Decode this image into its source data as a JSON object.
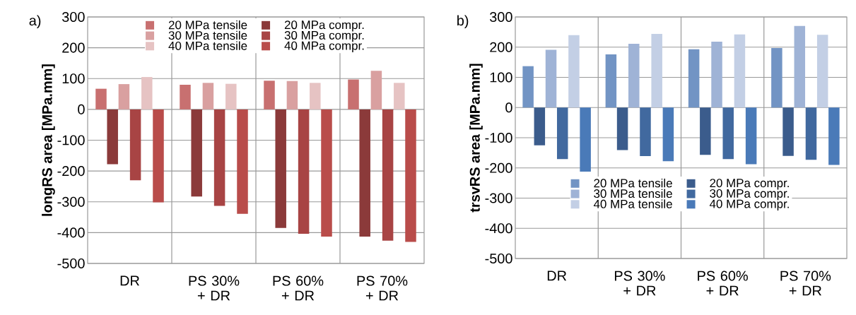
{
  "chart_data": [
    {
      "type": "bar",
      "annotations": [
        "a)"
      ],
      "ylabel": "longRS area [MPa.mm]",
      "categories": [
        "DR",
        "PS 30% + DR",
        "PS 60% + DR",
        "PS 70% + DR"
      ],
      "series": [
        {
          "name": "20 MPa tensile",
          "color": "#c87070",
          "values": [
            67,
            80,
            93,
            97
          ]
        },
        {
          "name": "20 MPa compr.",
          "color": "#8b3a3a",
          "values": [
            -178,
            -283,
            -385,
            -413
          ]
        },
        {
          "name": "30 MPa tensile",
          "color": "#d9a0a0",
          "values": [
            82,
            86,
            92,
            125
          ]
        },
        {
          "name": "30 MPa compr.",
          "color": "#a84444",
          "values": [
            -230,
            -313,
            -404,
            -426
          ]
        },
        {
          "name": "40 MPa tensile",
          "color": "#e6c3c3",
          "values": [
            105,
            83,
            86,
            86
          ]
        },
        {
          "name": "40 MPa compr.",
          "color": "#b94c4a",
          "values": [
            -302,
            -339,
            -413,
            -430
          ]
        }
      ],
      "ylim": [
        -500,
        300
      ],
      "yticks": [
        -500,
        -400,
        -300,
        -200,
        -100,
        0,
        100,
        200,
        300
      ],
      "grid": true,
      "legend": "top"
    },
    {
      "type": "bar",
      "annotations": [
        "b)"
      ],
      "ylabel": "trsvRS area [MPa.mm]",
      "categories": [
        "DR",
        "PS 30% + DR",
        "PS 60% + DR",
        "PS 70% + DR"
      ],
      "series": [
        {
          "name": "20 MPa tensile",
          "color": "#7294c4",
          "values": [
            137,
            176,
            193,
            197
          ]
        },
        {
          "name": "20 MPa compr.",
          "color": "#3b5c8c",
          "values": [
            -125,
            -141,
            -157,
            -160
          ]
        },
        {
          "name": "30 MPa tensile",
          "color": "#9fb3d6",
          "values": [
            191,
            211,
            218,
            270
          ]
        },
        {
          "name": "30 MPa compr.",
          "color": "#41699f",
          "values": [
            -171,
            -161,
            -171,
            -173
          ]
        },
        {
          "name": "40 MPa tensile",
          "color": "#c3cfe5",
          "values": [
            240,
            244,
            242,
            241
          ]
        },
        {
          "name": "40 MPa compr.",
          "color": "#4a7ab8",
          "values": [
            -212,
            -178,
            -188,
            -190
          ]
        }
      ],
      "ylim": [
        -500,
        300
      ],
      "yticks": [
        -500,
        -400,
        -300,
        -200,
        -100,
        0,
        100,
        200,
        300
      ],
      "grid": true,
      "legend": "bottom"
    }
  ]
}
